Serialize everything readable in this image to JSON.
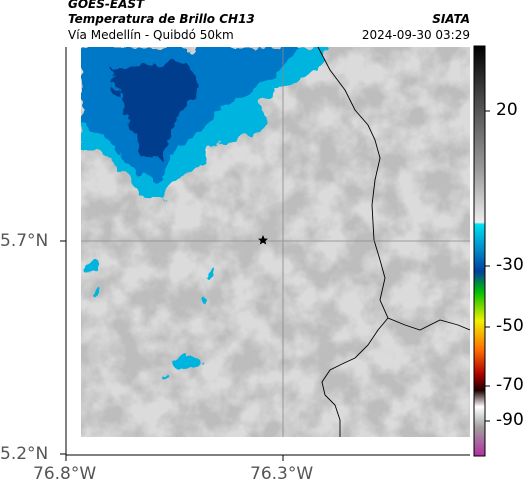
{
  "header": {
    "satellite": "GOES-EAST",
    "product": "Temperatura de Brillo CH13",
    "region": "Vía Medellín - Quibdó 50km",
    "agency": "SIATA",
    "timestamp": "2024-09-30 03:29"
  },
  "axes": {
    "lat_labels": [
      "5.7°N",
      "5.2°N"
    ],
    "lon_labels": [
      "76.8°W",
      "76.3°W"
    ]
  },
  "colorbar": {
    "tick_labels": [
      "20",
      "-30",
      "-50",
      "-70",
      "-90"
    ],
    "colors": {
      "top": "#000000",
      "gray_mid": "#9a9a9a",
      "gray_light": "#e6e6e6",
      "cyan": "#00c8e6",
      "blue": "#0050a8",
      "green": "#00b400",
      "yellow": "#f0f000",
      "orange": "#ff8c00",
      "red": "#c80000",
      "dark": "#200000",
      "magenta": "#b040a0"
    }
  },
  "map": {
    "marker": "star-marker",
    "colors": {
      "cloud_cold": "#003c8c",
      "cloud_mid": "#0078c8",
      "cloud_edge": "#00b4e0",
      "land_gray": "#c8c8c8",
      "boundary": "#000000",
      "gridline": "#888888"
    }
  }
}
